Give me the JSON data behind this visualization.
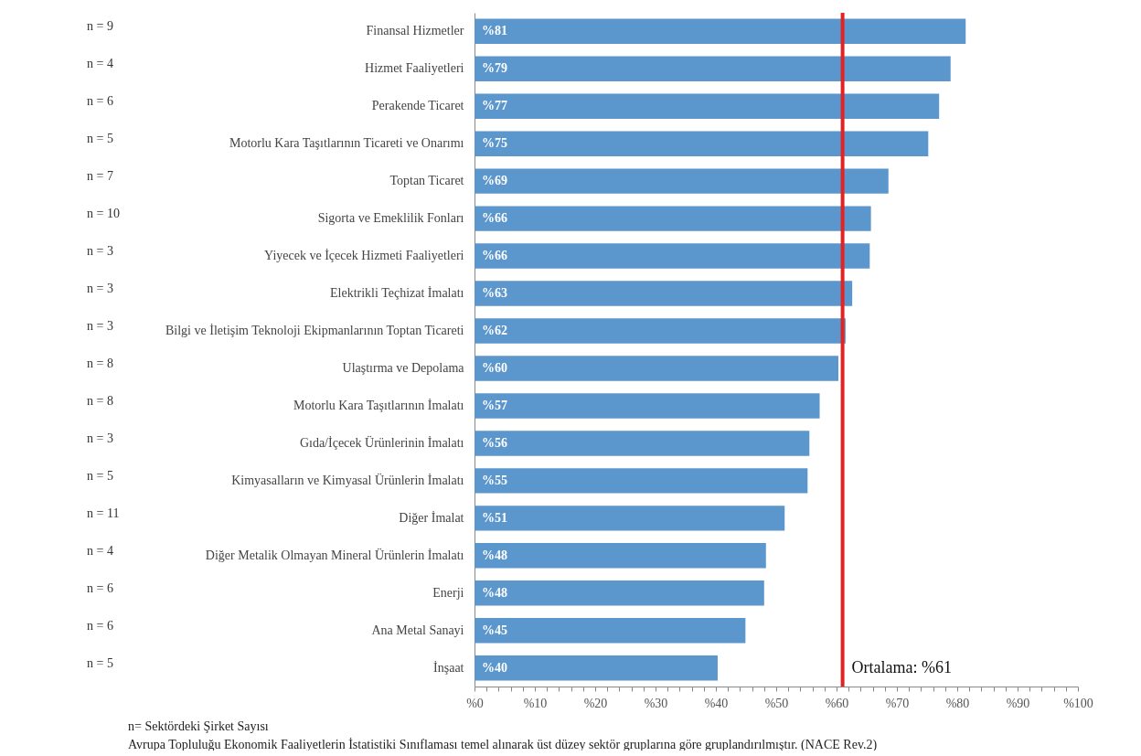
{
  "chart_data": {
    "type": "bar",
    "orientation": "horizontal",
    "categories": [
      "Finansal Hizmetler",
      "Hizmet Faaliyetleri",
      "Perakende Ticaret",
      "Motorlu Kara Taşıtlarının Ticareti ve Onarımı",
      "Toptan Ticaret",
      "Sigorta ve Emeklilik Fonları",
      "Yiyecek ve İçecek Hizmeti Faaliyetleri",
      "Elektrikli Teçhizat İmalatı",
      "Bilgi ve İletişim Teknoloji Ekipmanlarının Toptan Ticareti",
      "Ulaştırma ve Depolama",
      "Motorlu Kara Taşıtlarının İmalatı",
      "Gıda/İçecek Ürünlerinin İmalatı",
      "Kimyasalların ve Kimyasal Ürünlerin İmalatı",
      "Diğer İmalat",
      "Diğer Metalik Olmayan Mineral Ürünlerin İmalatı",
      "Enerji",
      "Ana Metal Sanayi",
      "İnşaat"
    ],
    "values": [
      81.4,
      78.9,
      77.0,
      75.2,
      68.6,
      65.7,
      65.5,
      62.6,
      61.5,
      60.3,
      57.2,
      55.5,
      55.2,
      51.4,
      48.3,
      48.0,
      44.9,
      40.3
    ],
    "value_labels": [
      "%81",
      "%79",
      "%77",
      "%75",
      "%69",
      "%66",
      "%66",
      "%63",
      "%62",
      "%60",
      "%57",
      "%56",
      "%55",
      "%51",
      "%48",
      "%48",
      "%45",
      "%40"
    ],
    "color": "#5b96cd",
    "xlim": [
      0,
      100
    ],
    "xticks": [
      {
        "value": 0,
        "label": "%0"
      },
      {
        "value": 2,
        "label": null
      },
      {
        "value": 4,
        "label": null
      },
      {
        "value": 6,
        "label": null
      },
      {
        "value": 8,
        "label": null
      },
      {
        "value": 10,
        "label": "%10"
      },
      {
        "value": 12,
        "label": null
      },
      {
        "value": 14,
        "label": null
      },
      {
        "value": 16,
        "label": null
      },
      {
        "value": 18,
        "label": null
      },
      {
        "value": 20,
        "label": "%20"
      },
      {
        "value": 22,
        "label": null
      },
      {
        "value": 24,
        "label": null
      },
      {
        "value": 26,
        "label": null
      },
      {
        "value": 28,
        "label": null
      },
      {
        "value": 30,
        "label": "%30"
      },
      {
        "value": 32,
        "label": null
      },
      {
        "value": 34,
        "label": null
      },
      {
        "value": 36,
        "label": null
      },
      {
        "value": 38,
        "label": null
      },
      {
        "value": 40,
        "label": "%40"
      },
      {
        "value": 42,
        "label": null
      },
      {
        "value": 44,
        "label": null
      },
      {
        "value": 46,
        "label": null
      },
      {
        "value": 48,
        "label": null
      },
      {
        "value": 50,
        "label": "%50"
      },
      {
        "value": 52,
        "label": null
      },
      {
        "value": 54,
        "label": null
      },
      {
        "value": 56,
        "label": null
      },
      {
        "value": 58,
        "label": null
      },
      {
        "value": 60,
        "label": "%60"
      },
      {
        "value": 62,
        "label": null
      },
      {
        "value": 64,
        "label": null
      },
      {
        "value": 66,
        "label": null
      },
      {
        "value": 68,
        "label": null
      },
      {
        "value": 70,
        "label": "%70"
      },
      {
        "value": 72,
        "label": null
      },
      {
        "value": 74,
        "label": null
      },
      {
        "value": 76,
        "label": null
      },
      {
        "value": 78,
        "label": null
      },
      {
        "value": 80,
        "label": "%80"
      },
      {
        "value": 82,
        "label": null
      },
      {
        "value": 84,
        "label": null
      },
      {
        "value": 86,
        "label": null
      },
      {
        "value": 88,
        "label": null
      },
      {
        "value": 90,
        "label": "%90"
      },
      {
        "value": 92,
        "label": null
      },
      {
        "value": 94,
        "label": null
      },
      {
        "value": 96,
        "label": null
      },
      {
        "value": 98,
        "label": null
      },
      {
        "value": 100,
        "label": "%100"
      }
    ],
    "ref_lines": [
      {
        "axis": "x",
        "value": 61,
        "label": "Ortalama: %61",
        "color": "#e02424"
      }
    ],
    "grid": false,
    "annotations": [
      "n = 9",
      "n = 4",
      "n = 6",
      "n = 5",
      "n = 7",
      "n = 10",
      "n = 3",
      "n = 3",
      "n = 3",
      "n = 8",
      "n = 8",
      "n = 3",
      "n = 5",
      "n = 11",
      "n = 4",
      "n = 6",
      "n = 6",
      "n = 5",
      "n= Sektördeki Şirket Sayısı",
      "Avrupa Topluluğu Ekonomik Faaliyetlerin İstatistiki Sınıflaması temel alınarak üst düzey sektör gruplarına göre gruplandırılmıştır. (NACE Rev.2)"
    ]
  }
}
